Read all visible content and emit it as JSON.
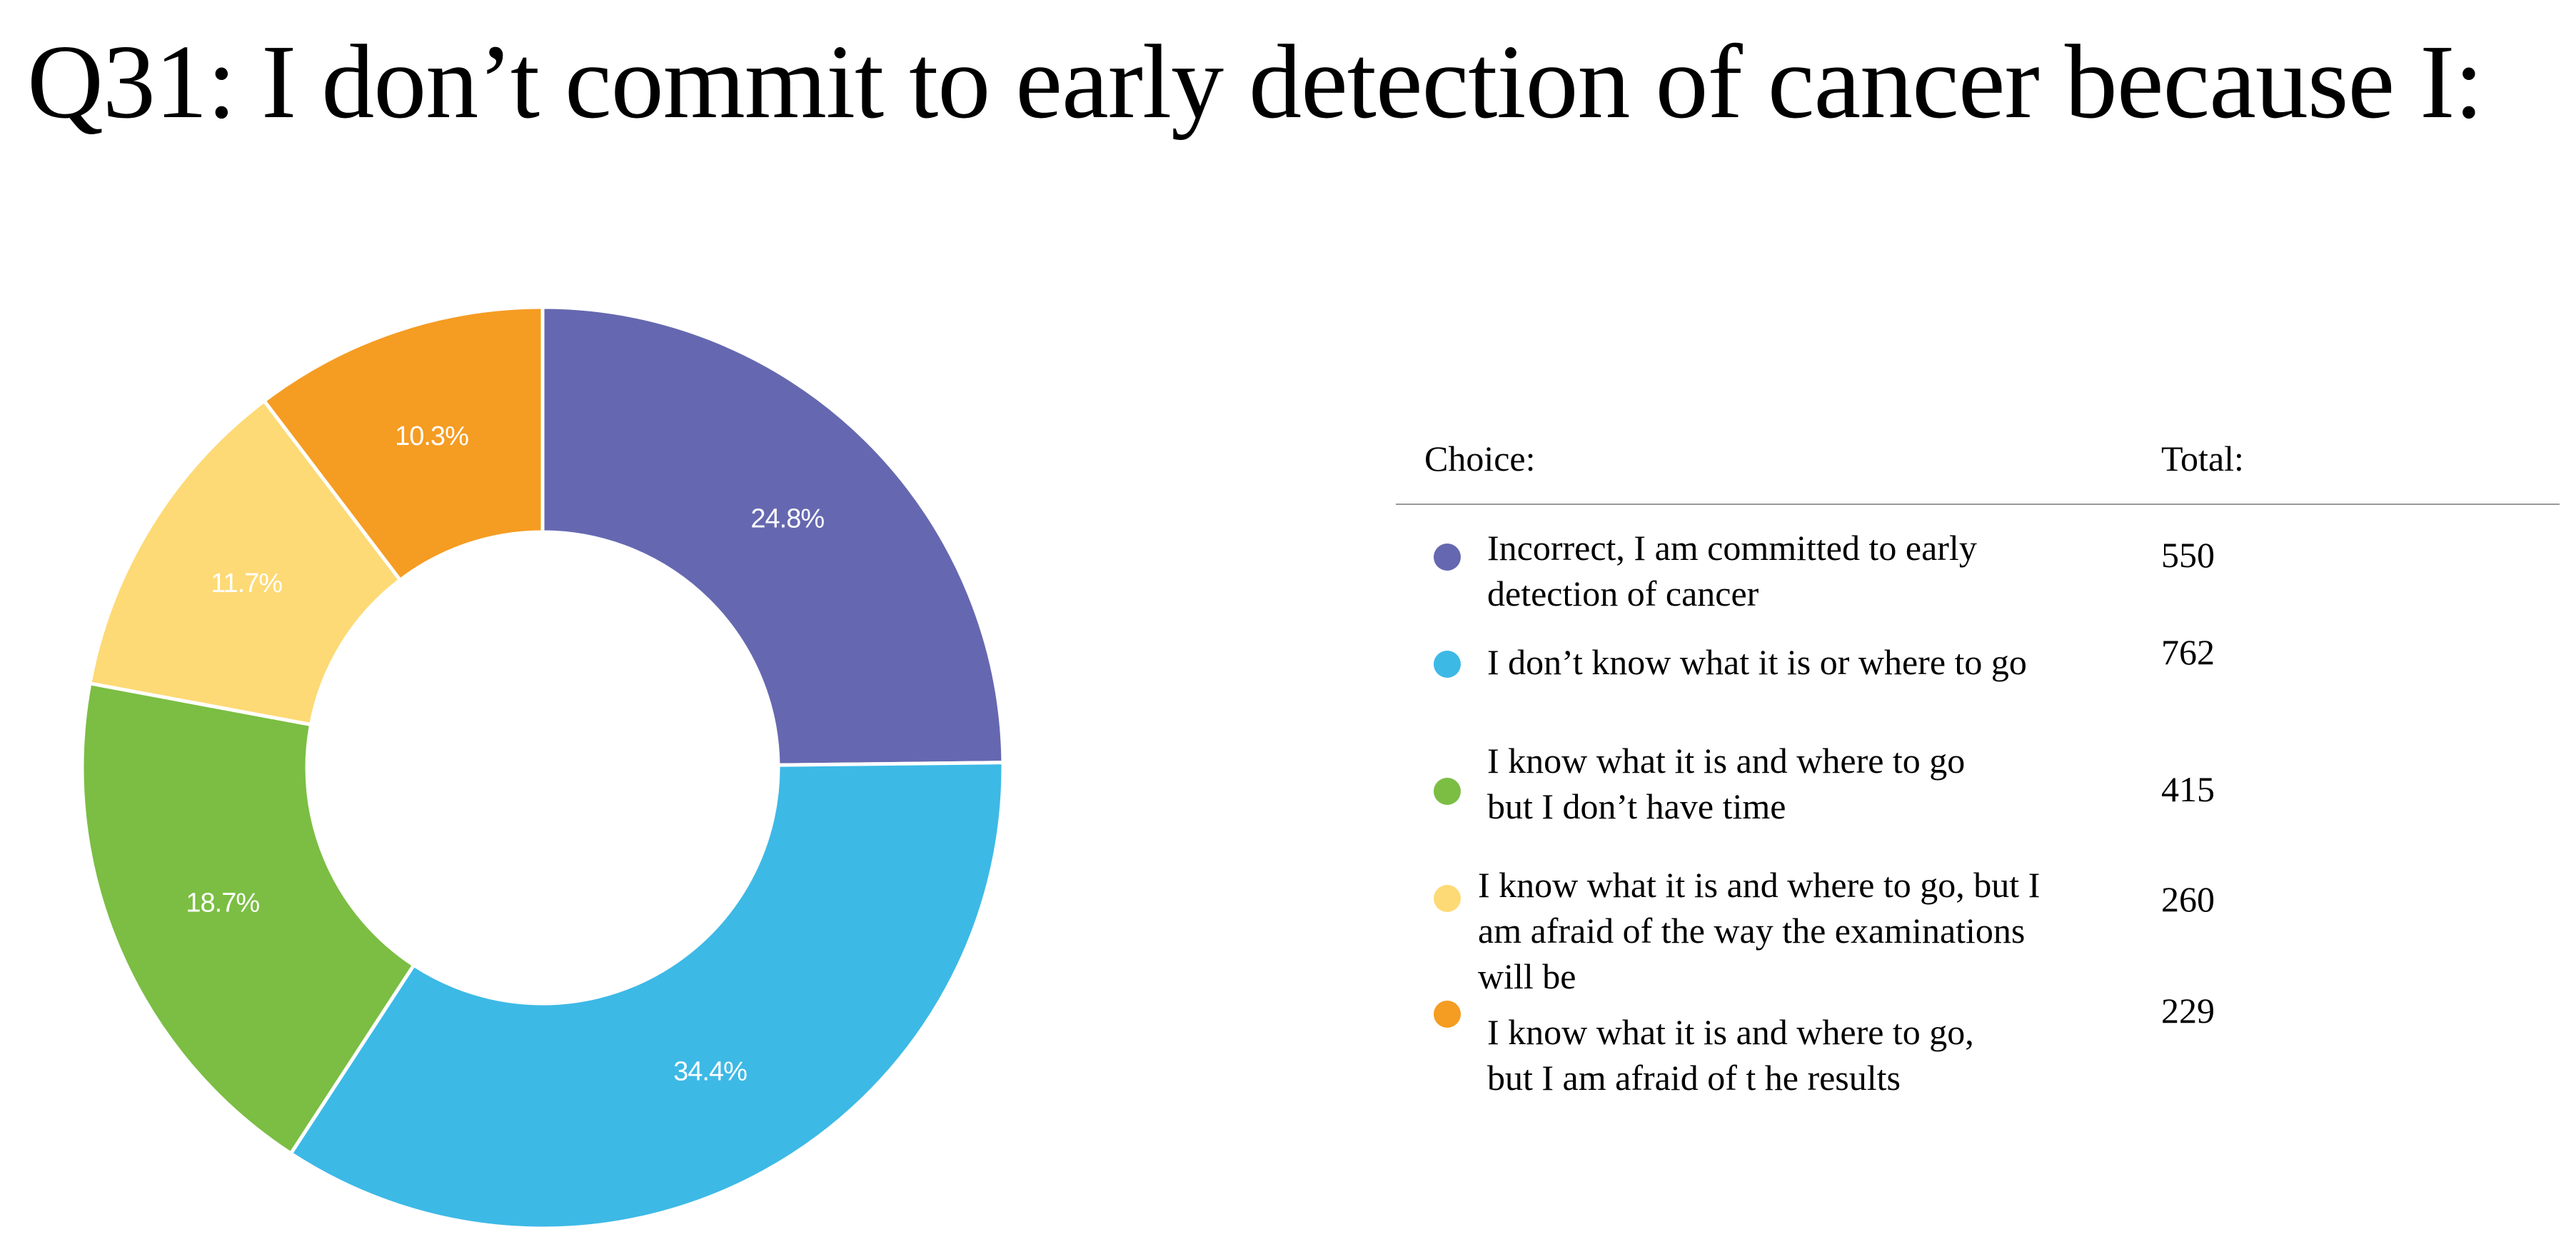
{
  "title": "Q31: I don’t commit to early detection of cancer because I:",
  "legend": {
    "header_choice": "Choice:",
    "header_total": "Total:",
    "rows": [
      {
        "lines": [
          "Incorrect, I am committed to early",
          "detection of cancer"
        ],
        "total": "550"
      },
      {
        "lines": [
          "I don’t know what it is or where to go"
        ],
        "total": "762"
      },
      {
        "lines": [
          "I know what it is and where to go",
          "but I don’t have time"
        ],
        "total": "415"
      },
      {
        "lines": [
          "I know what it is and where to go, but I",
          "am afraid of the way the examinations",
          "will be"
        ],
        "total": "260"
      },
      {
        "lines": [
          "I know what it is and where to go,",
          "but I am afraid of t he results"
        ],
        "total": "229"
      }
    ]
  },
  "chart_data": {
    "type": "pie",
    "donut": true,
    "title": "Q31: I don’t commit to early detection of cancer because I:",
    "categories": [
      "Incorrect, I am committed to early detection of cancer",
      "I don’t know what it is or where to go",
      "I know what it is and where to go but I don’t have time",
      "I know what it is and where to go, but I am afraid of the way the examinations will be",
      "I know what it is and where to go, but I am afraid of t he results"
    ],
    "values": [
      550,
      762,
      415,
      260,
      229
    ],
    "percent_labels": [
      "24.8%",
      "34.4%",
      "18.7%",
      "11.7%",
      "10.3%"
    ],
    "colors": [
      "#6568B0",
      "#3DB9E6",
      "#7BBE43",
      "#FDDA75",
      "#F59C22"
    ],
    "legend_position": "right"
  }
}
